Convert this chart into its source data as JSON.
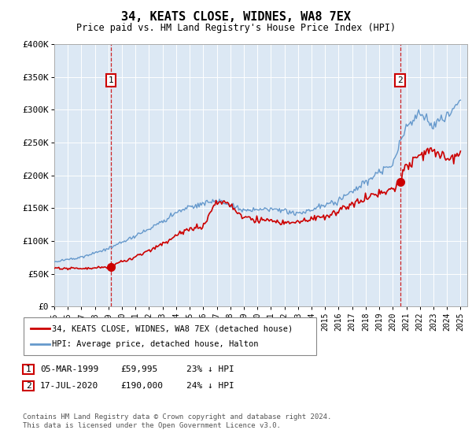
{
  "title": "34, KEATS CLOSE, WIDNES, WA8 7EX",
  "subtitle": "Price paid vs. HM Land Registry's House Price Index (HPI)",
  "background_color": "#dce8f4",
  "ylabel": "",
  "ylim": [
    0,
    400000
  ],
  "yticks": [
    0,
    50000,
    100000,
    150000,
    200000,
    250000,
    300000,
    350000,
    400000
  ],
  "ytick_labels": [
    "£0",
    "£50K",
    "£100K",
    "£150K",
    "£200K",
    "£250K",
    "£300K",
    "£350K",
    "£400K"
  ],
  "xlim_start": 1995.0,
  "xlim_end": 2025.5,
  "xticks": [
    1995,
    1996,
    1997,
    1998,
    1999,
    2000,
    2001,
    2002,
    2003,
    2004,
    2005,
    2006,
    2007,
    2008,
    2009,
    2010,
    2011,
    2012,
    2013,
    2014,
    2015,
    2016,
    2017,
    2018,
    2019,
    2020,
    2021,
    2022,
    2023,
    2024,
    2025
  ],
  "sale1_x": 1999.18,
  "sale1_y": 59995,
  "sale1_label": "1",
  "sale1_date": "05-MAR-1999",
  "sale1_price": "£59,995",
  "sale1_hpi": "23% ↓ HPI",
  "sale2_x": 2020.54,
  "sale2_y": 190000,
  "sale2_label": "2",
  "sale2_date": "17-JUL-2020",
  "sale2_price": "£190,000",
  "sale2_hpi": "24% ↓ HPI",
  "legend_label_red": "34, KEATS CLOSE, WIDNES, WA8 7EX (detached house)",
  "legend_label_blue": "HPI: Average price, detached house, Halton",
  "footer": "Contains HM Land Registry data © Crown copyright and database right 2024.\nThis data is licensed under the Open Government Licence v3.0.",
  "red_color": "#cc0000",
  "blue_color": "#6699cc"
}
